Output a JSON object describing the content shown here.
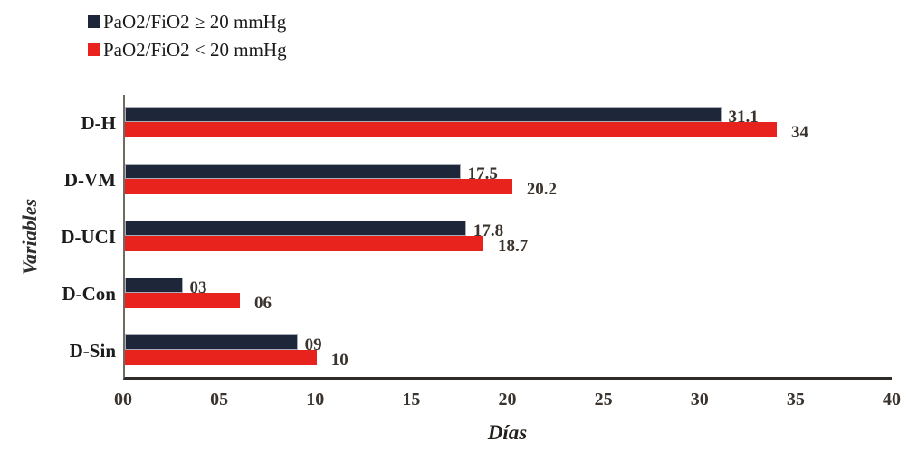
{
  "chart_data": {
    "type": "bar",
    "orientation": "horizontal",
    "title": "",
    "xlabel": "Días",
    "ylabel": "Variables",
    "categories": [
      "D-H",
      "D-VM",
      "D-UCI",
      "D-Con",
      "D-Sin"
    ],
    "series": [
      {
        "name": "PaO2/FiO2 ≥ 20 mmHg",
        "color": "#1e2639",
        "values": [
          31.1,
          17.5,
          17.8,
          3,
          9
        ],
        "value_labels": [
          "31.1",
          "17.5",
          "17.8",
          "03",
          "09"
        ]
      },
      {
        "name": "PaO2/FiO2 < 20 mmHg",
        "color": "#e8231e",
        "values": [
          34,
          20.2,
          18.7,
          6,
          10
        ],
        "value_labels": [
          "34",
          "20.2",
          "18.7",
          "06",
          "10"
        ]
      }
    ],
    "xlim": [
      0,
      40
    ],
    "xticks": [
      0,
      5,
      10,
      15,
      20,
      25,
      30,
      35,
      40
    ],
    "xtick_labels": [
      "00",
      "05",
      "10",
      "15",
      "20",
      "25",
      "30",
      "35",
      "40"
    ],
    "grid": false,
    "legend_position": "top-left"
  }
}
